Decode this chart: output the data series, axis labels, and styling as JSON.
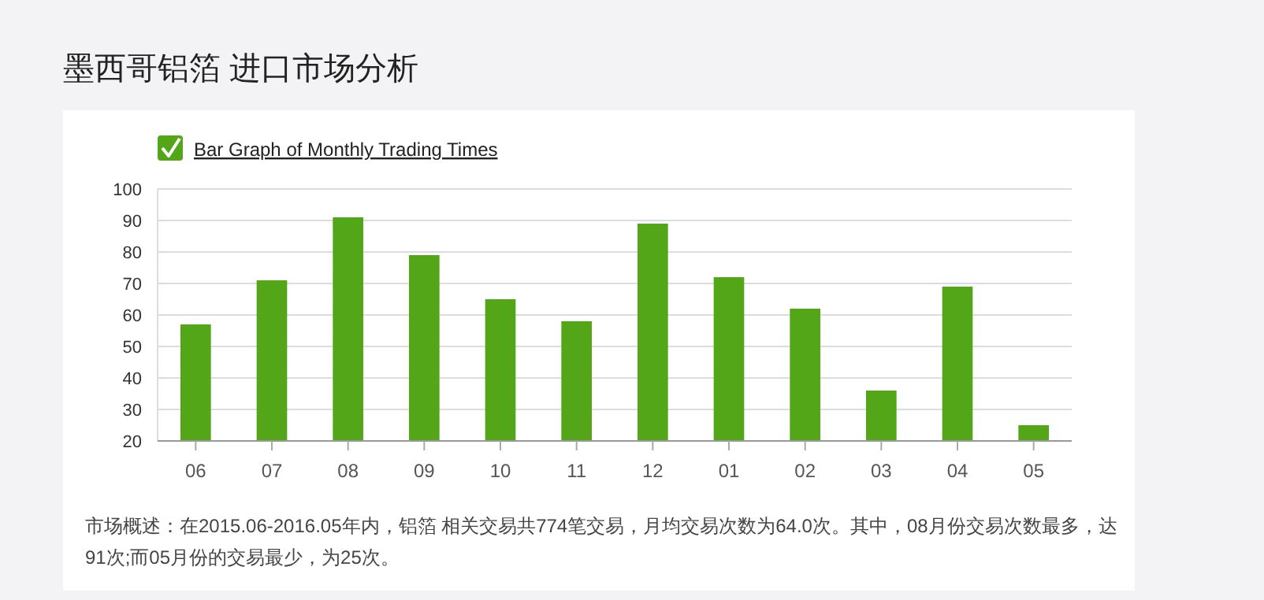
{
  "chart_data": {
    "type": "bar",
    "title": "墨西哥铝箔 进口市场分析",
    "categories": [
      "06",
      "07",
      "08",
      "09",
      "10",
      "11",
      "12",
      "01",
      "02",
      "03",
      "04",
      "05"
    ],
    "series": [
      {
        "name": "Bar Graph of Monthly Trading Times",
        "color": "#52a618",
        "values": [
          57,
          71,
          91,
          79,
          65,
          58,
          89,
          72,
          62,
          36,
          69,
          25
        ]
      }
    ],
    "ylim": [
      20,
      100
    ],
    "yticks": [
      20,
      30,
      40,
      50,
      60,
      70,
      80,
      90,
      100
    ],
    "grid": "y",
    "legend": "top left",
    "annotations": [
      "市场概述：在2015.06-2016.05年内，铝箔 相关交易共774笔交易，月均交易次数为64.0次。其中，08月份交易次数最多，达91次;而05月份的交易最少，为25次。"
    ]
  }
}
